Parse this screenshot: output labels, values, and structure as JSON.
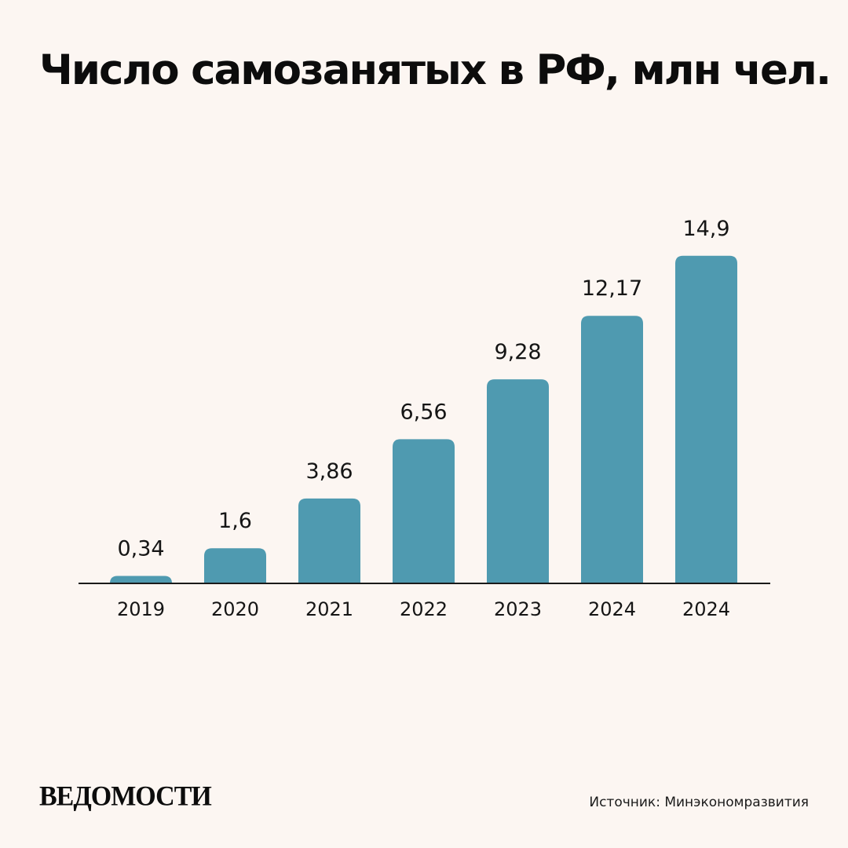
{
  "header": {
    "title": "Число самозанятых в РФ, млн чел."
  },
  "chart_data": {
    "type": "bar",
    "title": "Число самозанятых в РФ, млн чел.",
    "categories": [
      "2019",
      "2020",
      "2021",
      "2022",
      "2023",
      "2024",
      "2024"
    ],
    "values": [
      0.34,
      1.6,
      3.86,
      6.56,
      9.28,
      12.17,
      14.9
    ],
    "value_labels": [
      "0,34",
      "1,6",
      "3,86",
      "6,56",
      "9,28",
      "12,17",
      "14,9"
    ],
    "xlabel": "",
    "ylabel": "",
    "ylim": [
      0,
      15
    ],
    "grid": false,
    "legend": "none",
    "bar_color": "#4f9ab0",
    "axis_color": "#1a1a1a"
  },
  "footer": {
    "logo_text": "ВЕДОМОСТИ",
    "source": "Источник: Минэкономразвития"
  }
}
